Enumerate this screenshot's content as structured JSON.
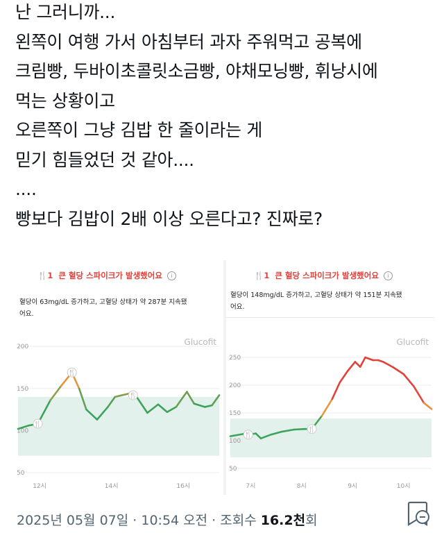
{
  "tweet": {
    "lines": [
      "난 그러니까...",
      "왼쪽이 여행 가서 아침부터 과자 주워먹고 공복에",
      "크림빵, 두바이초콜릿소금빵, 야채모닝빵, 휘낭시에",
      "먹는 상황이고",
      "오른쪽이 그냥 김밥 한 줄이라는 게",
      "믿기 힘들었던 것 같아....",
      "....",
      "빵보다 김밥이 2배 이상 오른다고? 진짜로?"
    ]
  },
  "cards": [
    {
      "badge": "1",
      "title": "큰 혈당 스파이크가 발생했어요",
      "info_glyph": "i",
      "desc_line1": "혈당이 63mg/dL 증가하고, 고혈당 상태가 약 287분 지속됐",
      "desc_line2": "어요.",
      "watermark": "Glucofit"
    },
    {
      "badge": "1",
      "title": "큰 혈당 스파이크가 발생했어요",
      "info_glyph": "i",
      "desc_line1": "혈당이 148mg/dL 증가하고, 고혈당 상태가 약 151분 지속됐",
      "desc_line2": "어요.",
      "watermark": "Glucofit"
    }
  ],
  "chart_data": [
    {
      "type": "line",
      "ylim": [
        50,
        210
      ],
      "yticks": [
        50,
        100,
        150,
        200
      ],
      "ytick_labels": [
        "50",
        "100",
        "150",
        "200"
      ],
      "xlim": [
        11.4,
        17.0
      ],
      "xticks": [
        12,
        14,
        16
      ],
      "xtick_labels": [
        "12시",
        "14시",
        "16시"
      ],
      "target_range": [
        70,
        140
      ],
      "x": [
        11.4,
        11.7,
        11.95,
        12.3,
        12.6,
        12.9,
        13.1,
        13.3,
        13.6,
        13.9,
        14.1,
        14.3,
        14.5,
        14.7,
        15.0,
        15.3,
        15.55,
        15.8,
        16.1,
        16.3,
        16.6,
        16.8,
        17.0
      ],
      "y": [
        102,
        106,
        108,
        136,
        153,
        169,
        150,
        125,
        113,
        128,
        140,
        142,
        144,
        140,
        121,
        131,
        122,
        128,
        146,
        132,
        128,
        130,
        142
      ],
      "meal_markers_x": [
        11.95,
        12.9,
        14.6
      ]
    },
    {
      "type": "line",
      "ylim": [
        40,
        285
      ],
      "yticks": [
        50,
        100,
        150,
        200,
        250
      ],
      "ytick_labels": [
        "50",
        "100",
        "150",
        "200",
        "250"
      ],
      "xlim": [
        6.6,
        10.55
      ],
      "xticks": [
        7,
        8,
        9,
        10
      ],
      "xtick_labels": [
        "7시",
        "8시",
        "9시",
        "10시"
      ],
      "target_range": [
        70,
        140
      ],
      "x": [
        6.6,
        6.85,
        6.95,
        7.1,
        7.2,
        7.4,
        7.6,
        7.85,
        8.05,
        8.2,
        8.4,
        8.6,
        8.75,
        8.9,
        9.05,
        9.15,
        9.25,
        9.4,
        9.5,
        9.6,
        9.8,
        10.0,
        10.2,
        10.4,
        10.55
      ],
      "y": [
        108,
        112,
        111,
        113,
        104,
        111,
        116,
        120,
        121,
        121,
        145,
        175,
        205,
        225,
        242,
        233,
        250,
        245,
        245,
        242,
        232,
        220,
        198,
        168,
        157
      ],
      "meal_markers_x": [
        6.95,
        8.2
      ]
    }
  ],
  "footer": {
    "date": "2025년 05월 07일",
    "sep": " · ",
    "time": "10:54 오전",
    "views_prefix": "조회수 ",
    "views_count": "16.2천",
    "views_suffix": "회"
  },
  "colors": {
    "spike_red": "#e0413b",
    "line_green": "#3da35a",
    "target_band": "#e3f1ec"
  }
}
